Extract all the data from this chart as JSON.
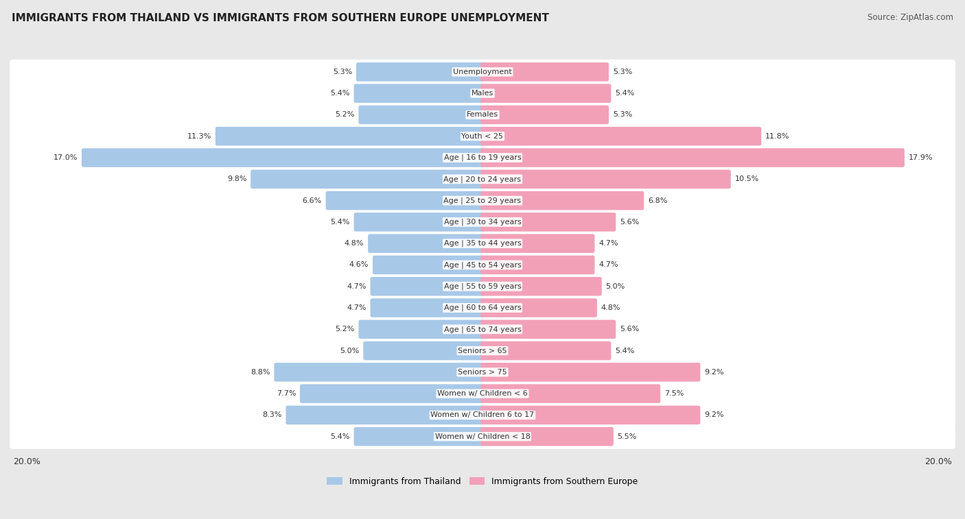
{
  "title": "IMMIGRANTS FROM THAILAND VS IMMIGRANTS FROM SOUTHERN EUROPE UNEMPLOYMENT",
  "source": "Source: ZipAtlas.com",
  "categories": [
    "Unemployment",
    "Males",
    "Females",
    "Youth < 25",
    "Age | 16 to 19 years",
    "Age | 20 to 24 years",
    "Age | 25 to 29 years",
    "Age | 30 to 34 years",
    "Age | 35 to 44 years",
    "Age | 45 to 54 years",
    "Age | 55 to 59 years",
    "Age | 60 to 64 years",
    "Age | 65 to 74 years",
    "Seniors > 65",
    "Seniors > 75",
    "Women w/ Children < 6",
    "Women w/ Children 6 to 17",
    "Women w/ Children < 18"
  ],
  "thailand_values": [
    5.3,
    5.4,
    5.2,
    11.3,
    17.0,
    9.8,
    6.6,
    5.4,
    4.8,
    4.6,
    4.7,
    4.7,
    5.2,
    5.0,
    8.8,
    7.7,
    8.3,
    5.4
  ],
  "southern_europe_values": [
    5.3,
    5.4,
    5.3,
    11.8,
    17.9,
    10.5,
    6.8,
    5.6,
    4.7,
    4.7,
    5.0,
    4.8,
    5.6,
    5.4,
    9.2,
    7.5,
    9.2,
    5.5
  ],
  "thailand_color": "#a8c8e8",
  "southern_europe_color": "#f2a0b8",
  "background_color": "#e8e8e8",
  "bar_bg_color": "#ffffff",
  "axis_max": 20.0,
  "title_color": "#222222",
  "source_color": "#555555"
}
